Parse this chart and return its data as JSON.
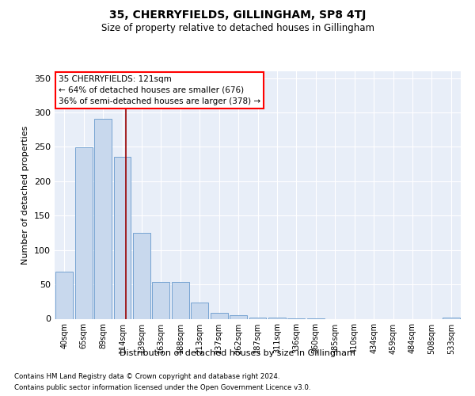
{
  "title": "35, CHERRYFIELDS, GILLINGHAM, SP8 4TJ",
  "subtitle": "Size of property relative to detached houses in Gillingham",
  "xlabel": "Distribution of detached houses by size in Gillingham",
  "ylabel": "Number of detached properties",
  "bar_color": "#c8d8ed",
  "bar_edge_color": "#6699cc",
  "background_color": "#e8eef8",
  "categories": [
    "40sqm",
    "65sqm",
    "89sqm",
    "114sqm",
    "139sqm",
    "163sqm",
    "188sqm",
    "213sqm",
    "237sqm",
    "262sqm",
    "287sqm",
    "311sqm",
    "336sqm",
    "360sqm",
    "385sqm",
    "410sqm",
    "434sqm",
    "459sqm",
    "484sqm",
    "508sqm",
    "533sqm"
  ],
  "values": [
    68,
    249,
    291,
    236,
    125,
    54,
    54,
    24,
    9,
    5,
    2,
    2,
    1,
    1,
    0,
    0,
    0,
    0,
    0,
    0,
    2
  ],
  "ylim": [
    0,
    360
  ],
  "yticks": [
    0,
    50,
    100,
    150,
    200,
    250,
    300,
    350
  ],
  "annotation_line1": "35 CHERRYFIELDS: 121sqm",
  "annotation_line2": "← 64% of detached houses are smaller (676)",
  "annotation_line3": "36% of semi-detached houses are larger (378) →",
  "red_line_x": 3.18,
  "footer_line1": "Contains HM Land Registry data © Crown copyright and database right 2024.",
  "footer_line2": "Contains public sector information licensed under the Open Government Licence v3.0."
}
